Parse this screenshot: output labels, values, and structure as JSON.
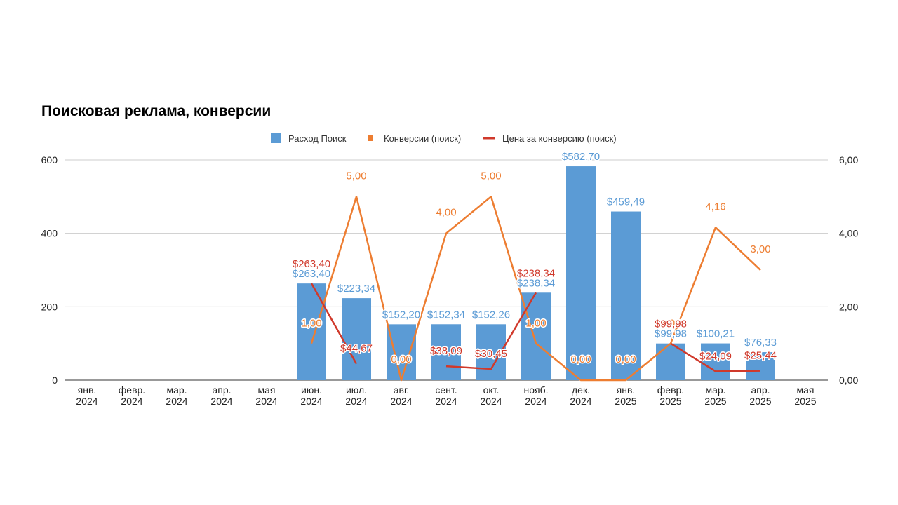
{
  "chart_data": {
    "type": "bar",
    "title": "Поисковая реклама, конверсии",
    "categories": [
      [
        "янв.",
        "2024"
      ],
      [
        "февр.",
        "2024"
      ],
      [
        "мар.",
        "2024"
      ],
      [
        "апр.",
        "2024"
      ],
      [
        "мая",
        "2024"
      ],
      [
        "июн.",
        "2024"
      ],
      [
        "июл.",
        "2024"
      ],
      [
        "авг.",
        "2024"
      ],
      [
        "сент.",
        "2024"
      ],
      [
        "окт.",
        "2024"
      ],
      [
        "нояб.",
        "2024"
      ],
      [
        "дек.",
        "2024"
      ],
      [
        "янв.",
        "2025"
      ],
      [
        "февр.",
        "2025"
      ],
      [
        "мар.",
        "2025"
      ],
      [
        "апр.",
        "2025"
      ],
      [
        "мая",
        "2025"
      ]
    ],
    "left_axis": {
      "ylim": [
        0,
        600
      ],
      "ticks": [
        0,
        200,
        400,
        600
      ],
      "tick_labels": [
        "0",
        "200",
        "400",
        "600"
      ]
    },
    "right_axis": {
      "ylim": [
        0,
        6
      ],
      "ticks": [
        0,
        2,
        4,
        6
      ],
      "tick_labels": [
        "0,00",
        "2,00",
        "4,00",
        "6,00"
      ]
    },
    "grid": true,
    "legend_position": "top",
    "series": [
      {
        "name": "Расход Поиск",
        "type": "bar",
        "axis": "left",
        "color": "#5b9bd5",
        "label_color": "#5b9bd5",
        "values": [
          null,
          null,
          null,
          null,
          null,
          263.4,
          223.34,
          152.2,
          152.34,
          152.26,
          238.34,
          582.7,
          459.49,
          99.98,
          100.21,
          76.33,
          null
        ],
        "labels": [
          "",
          "",
          "",
          "",
          "",
          "$263,40",
          "$223,34",
          "$152,20",
          "$152,34",
          "$152,26",
          "$238,34",
          "$582,70",
          "$459,49",
          "$99,98",
          "$100,21",
          "$76,33",
          ""
        ]
      },
      {
        "name": "Конверсии (поиск)",
        "type": "line",
        "axis": "right",
        "color": "#ed7d31",
        "label_color": "#ed7d31",
        "values": [
          null,
          null,
          null,
          null,
          null,
          1.0,
          5.0,
          0.0,
          4.0,
          5.0,
          1.0,
          0.0,
          0.0,
          1.0,
          4.16,
          3.0,
          null
        ],
        "labels": [
          "",
          "",
          "",
          "",
          "",
          "1,00",
          "5,00",
          "0,00",
          "4,00",
          "5,00",
          "1,00",
          "0,00",
          "0,00",
          "1,00",
          "4,16",
          "3,00",
          ""
        ]
      },
      {
        "name": "Цена за конверсию (поиск)",
        "type": "line",
        "axis": "left",
        "color": "#d0392b",
        "label_color": "#d0392b",
        "values": [
          null,
          null,
          null,
          null,
          null,
          263.4,
          44.67,
          null,
          38.09,
          30.45,
          238.34,
          null,
          null,
          99.98,
          24.09,
          25.44,
          null
        ],
        "labels": [
          "",
          "",
          "",
          "",
          "",
          "$263,40",
          "$44,67",
          "",
          "$38,09",
          "$30,45",
          "$238,34",
          "",
          "",
          "$99,98",
          "$24,09",
          "$25,44",
          ""
        ]
      }
    ]
  }
}
